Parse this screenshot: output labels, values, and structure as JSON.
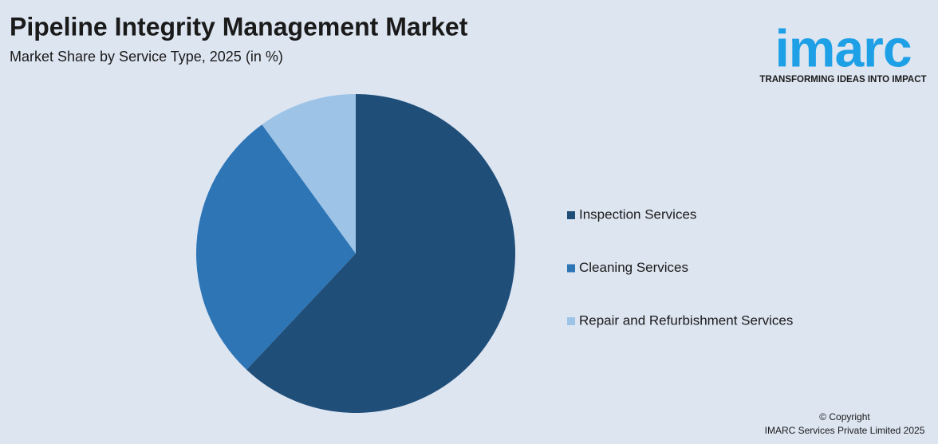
{
  "chart_data": {
    "type": "pie",
    "title": "Pipeline Integrity Management Market",
    "subtitle": "Market Share by Service Type, 2025 (in %)",
    "categories": [
      "Inspection Services",
      "Cleaning Services",
      "Repair and Refurbishment Services"
    ],
    "values": [
      62,
      28,
      10
    ],
    "colors": [
      "#1f4e79",
      "#2e75b6",
      "#9dc3e6"
    ],
    "legend": "right"
  },
  "logo": {
    "name": "imarc",
    "tagline": "TRANSFORMING IDEAS INTO IMPACT"
  },
  "footer": {
    "copyright": "© Copyright",
    "company": "IMARC Services Private Limited 2025"
  }
}
